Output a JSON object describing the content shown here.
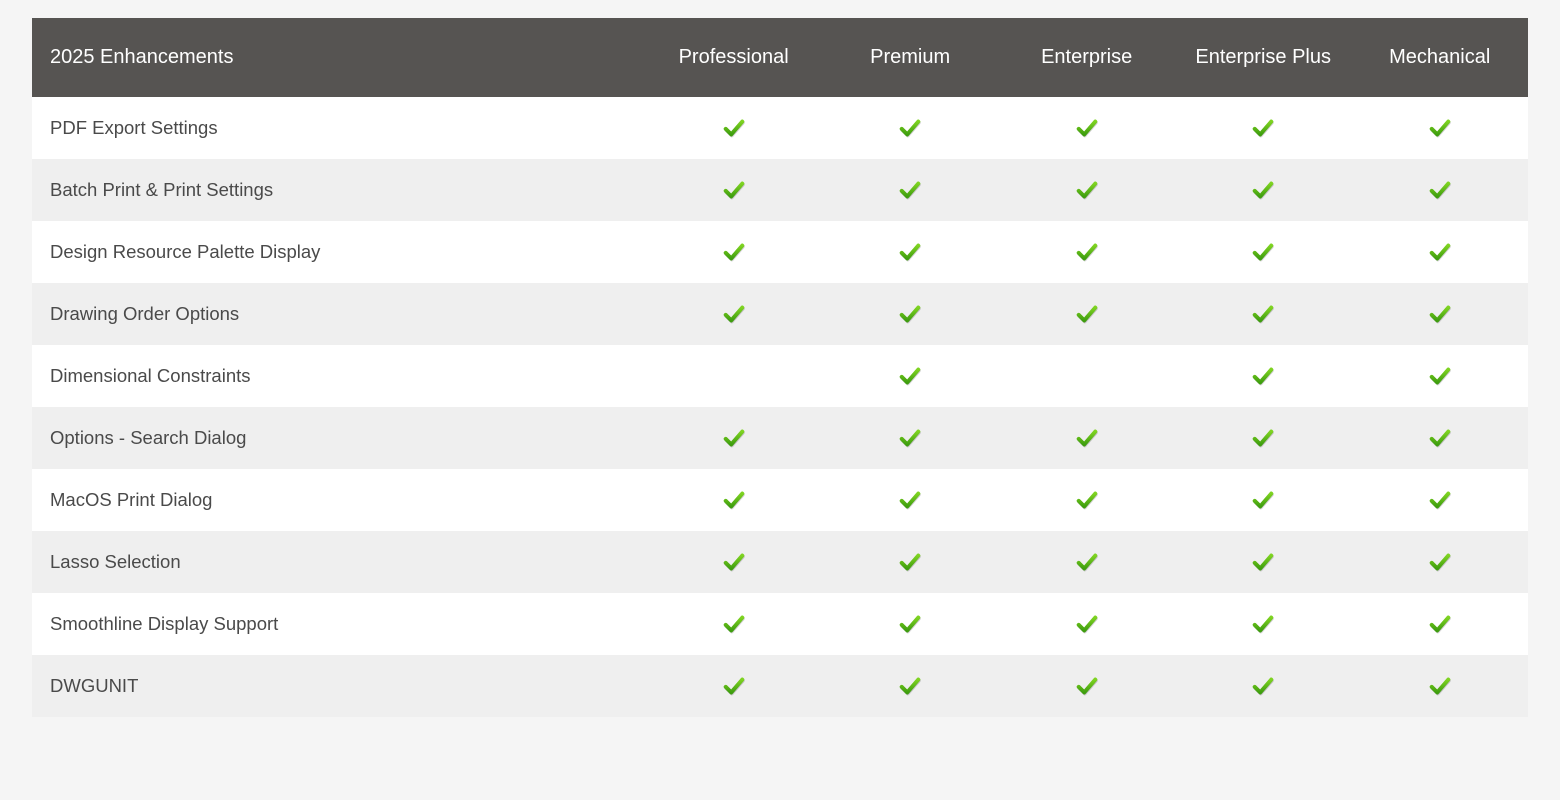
{
  "table": {
    "type": "table",
    "header_label": "2025 Enhancements",
    "columns": [
      "Professional",
      "Premium",
      "Enterprise",
      "Enterprise Plus",
      "Mechanical"
    ],
    "rows": [
      {
        "label": "PDF Export Settings",
        "cells": [
          true,
          true,
          true,
          true,
          true
        ]
      },
      {
        "label": "Batch Print & Print Settings",
        "cells": [
          true,
          true,
          true,
          true,
          true
        ]
      },
      {
        "label": "Design Resource Palette Display",
        "cells": [
          true,
          true,
          true,
          true,
          true
        ]
      },
      {
        "label": "Drawing Order Options",
        "cells": [
          true,
          true,
          true,
          true,
          true
        ]
      },
      {
        "label": "Dimensional Constraints",
        "cells": [
          false,
          true,
          false,
          true,
          true
        ]
      },
      {
        "label": "Options - Search Dialog",
        "cells": [
          true,
          true,
          true,
          true,
          true
        ]
      },
      {
        "label": "MacOS Print Dialog",
        "cells": [
          true,
          true,
          true,
          true,
          true
        ]
      },
      {
        "label": "Lasso Selection",
        "cells": [
          true,
          true,
          true,
          true,
          true
        ]
      },
      {
        "label": "Smoothline Display Support",
        "cells": [
          true,
          true,
          true,
          true,
          true
        ]
      },
      {
        "label": "DWGUNIT",
        "cells": [
          true,
          true,
          true,
          true,
          true
        ]
      }
    ],
    "styling": {
      "header_bg": "#565452",
      "header_text_color": "#ffffff",
      "header_fontsize": 20,
      "row_bg_odd": "#ffffff",
      "row_bg_even": "#efefef",
      "row_text_color": "#4a4a4a",
      "row_fontsize": 18.5,
      "page_bg": "#f5f5f5",
      "check_color_light": "#7ed321",
      "check_color_dark": "#3f9e0f",
      "label_col_width_pct": 41,
      "plan_col_width_pct": 11.8,
      "column_alignment": [
        "left",
        "center",
        "center",
        "center",
        "center",
        "center"
      ]
    }
  }
}
